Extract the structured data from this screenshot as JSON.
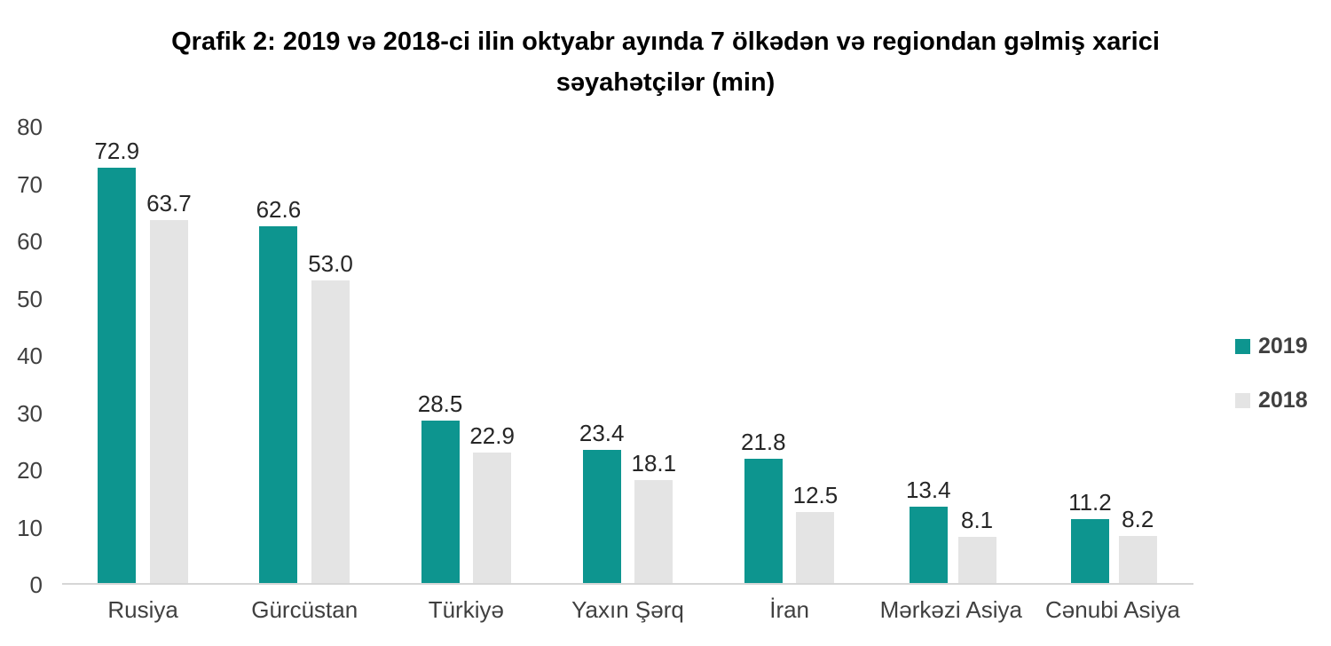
{
  "title": "Qrafik 2: 2019 və 2018-ci ilin oktyabr ayında 7 ölkədən və regiondan gəlmiş xarici səyahətçilər (min)",
  "colors": {
    "series_2019": "#0d958f",
    "series_2018": "#e4e4e4",
    "axis_line": "#d6d6d6",
    "tick_text": "#404040",
    "value_text": "#262626"
  },
  "chart_data": {
    "type": "bar",
    "title": "Qrafik 2: 2019 və 2018-ci ilin oktyabr ayında 7 ölkədən və regiondan gəlmiş xarici səyahətçilər (min)",
    "categories": [
      "Rusiya",
      "Gürcüstan",
      "Türkiyə",
      "Yaxın Şərq",
      "İran",
      "Mərkəzi Asiya",
      "Cənubi Asiya"
    ],
    "series": [
      {
        "name": "2019",
        "color": "#0d958f",
        "values": [
          72.9,
          62.6,
          28.5,
          23.4,
          21.8,
          13.4,
          11.2
        ],
        "labels": [
          "72.9",
          "62.6",
          "28.5",
          "23.4",
          "21.8",
          "13.4",
          "11.2"
        ]
      },
      {
        "name": "2018",
        "color": "#e4e4e4",
        "values": [
          63.7,
          53.0,
          22.9,
          18.1,
          12.5,
          8.1,
          8.2
        ],
        "labels": [
          "63.7",
          "53.0",
          "22.9",
          "18.1",
          "12.5",
          "8.1",
          "8.2"
        ]
      }
    ],
    "xlabel": "",
    "ylabel": "",
    "ylim": [
      0,
      80
    ],
    "yticks": [
      0,
      10,
      20,
      30,
      40,
      50,
      60,
      70,
      80
    ],
    "grid": false,
    "legend_position": "right",
    "data_labels": true
  }
}
